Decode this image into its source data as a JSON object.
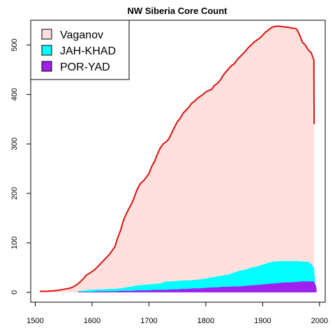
{
  "chart_data": {
    "type": "area",
    "title": "NW Siberia Core Count",
    "xlabel": "",
    "ylabel": "",
    "xlim": [
      1492,
      2010
    ],
    "ylim": [
      -20,
      550
    ],
    "x_ticks": [
      1500,
      1600,
      1700,
      1800,
      1900,
      2000
    ],
    "y_ticks": [
      0,
      100,
      200,
      300,
      400,
      500
    ],
    "grid": false,
    "legend": {
      "position": "top-left",
      "entries": [
        {
          "label": "Vaganov",
          "color": "#FFE0DC"
        },
        {
          "label": "JAH-KHAD",
          "color": "#00FFFF"
        },
        {
          "label": "POR-YAD",
          "color": "#A020F0"
        }
      ]
    },
    "series": [
      {
        "name": "Vaganov",
        "fill": "#FFE0DC",
        "line": "#DD1111",
        "x": [
          1508,
          1520,
          1530,
          1540,
          1550,
          1560,
          1565,
          1570,
          1575,
          1580,
          1585,
          1590,
          1595,
          1600,
          1605,
          1610,
          1615,
          1620,
          1625,
          1630,
          1635,
          1640,
          1645,
          1650,
          1655,
          1660,
          1665,
          1670,
          1675,
          1680,
          1685,
          1690,
          1695,
          1700,
          1705,
          1710,
          1715,
          1720,
          1725,
          1730,
          1735,
          1740,
          1745,
          1750,
          1755,
          1760,
          1765,
          1770,
          1775,
          1780,
          1785,
          1790,
          1795,
          1800,
          1805,
          1810,
          1815,
          1820,
          1825,
          1830,
          1835,
          1840,
          1845,
          1850,
          1855,
          1860,
          1865,
          1870,
          1875,
          1880,
          1885,
          1890,
          1895,
          1900,
          1905,
          1910,
          1915,
          1920,
          1925,
          1930,
          1935,
          1940,
          1945,
          1950,
          1955,
          1960,
          1965,
          1970,
          1975,
          1980,
          1985,
          1990,
          1990.5
        ],
        "y": [
          2,
          2,
          3,
          4,
          6,
          8,
          10,
          13,
          17,
          22,
          28,
          35,
          38,
          42,
          46,
          52,
          58,
          64,
          70,
          76,
          84,
          92,
          110,
          125,
          145,
          158,
          170,
          180,
          195,
          210,
          220,
          225,
          232,
          240,
          255,
          265,
          280,
          292,
          300,
          304,
          310,
          322,
          334,
          345,
          352,
          362,
          368,
          374,
          382,
          386,
          392,
          396,
          400,
          405,
          408,
          410,
          418,
          422,
          428,
          438,
          445,
          452,
          458,
          462,
          470,
          476,
          482,
          488,
          495,
          500,
          506,
          510,
          514,
          520,
          526,
          530,
          535,
          537,
          538,
          538,
          537,
          536,
          536,
          534,
          534,
          532,
          520,
          505,
          500,
          490,
          485,
          470,
          340
        ]
      },
      {
        "name": "JAH-KHAD",
        "fill": "#00FFFF",
        "x": [
          1575,
          1580,
          1590,
          1600,
          1610,
          1620,
          1630,
          1640,
          1650,
          1660,
          1670,
          1680,
          1690,
          1700,
          1710,
          1720,
          1730,
          1740,
          1750,
          1760,
          1770,
          1780,
          1790,
          1800,
          1810,
          1820,
          1830,
          1840,
          1850,
          1860,
          1870,
          1880,
          1890,
          1900,
          1910,
          1920,
          1930,
          1940,
          1950,
          1960,
          1970,
          1980,
          1985,
          1990,
          1993
        ],
        "y": [
          2,
          3,
          4,
          5,
          6,
          6,
          7,
          7,
          8,
          10,
          12,
          14,
          15,
          16,
          17,
          18,
          22,
          22,
          23,
          24,
          24,
          25,
          26,
          28,
          30,
          32,
          34,
          36,
          40,
          44,
          46,
          50,
          52,
          56,
          60,
          62,
          63,
          63,
          63,
          63,
          62,
          62,
          58,
          50,
          15
        ]
      },
      {
        "name": "POR-YAD",
        "fill": "#A020F0",
        "x": [
          1575,
          1580,
          1590,
          1600,
          1610,
          1620,
          1630,
          1640,
          1650,
          1660,
          1670,
          1680,
          1690,
          1700,
          1710,
          1720,
          1730,
          1740,
          1750,
          1760,
          1770,
          1780,
          1790,
          1800,
          1810,
          1820,
          1830,
          1840,
          1850,
          1860,
          1870,
          1880,
          1890,
          1900,
          1910,
          1920,
          1930,
          1940,
          1950,
          1960,
          1970,
          1980,
          1990,
          1994,
          1995
        ],
        "y": [
          1,
          1,
          1,
          1,
          2,
          2,
          2,
          2,
          3,
          3,
          3,
          4,
          4,
          4,
          5,
          5,
          5,
          6,
          6,
          7,
          7,
          8,
          8,
          9,
          10,
          10,
          11,
          11,
          12,
          12,
          13,
          14,
          15,
          16,
          17,
          18,
          19,
          20,
          20,
          21,
          22,
          22,
          22,
          12,
          3
        ]
      }
    ]
  }
}
